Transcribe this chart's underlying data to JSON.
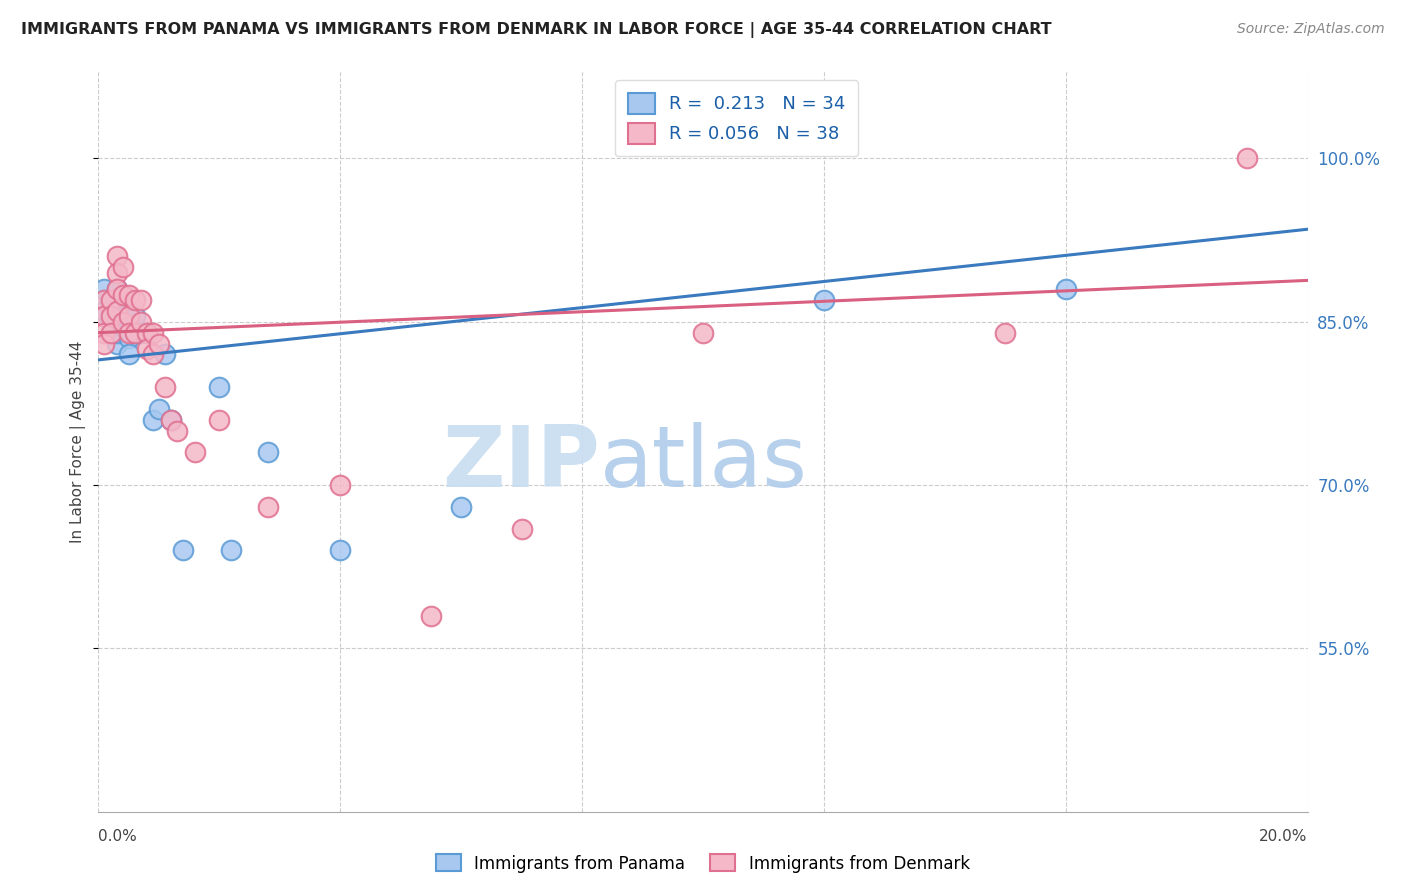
{
  "title": "IMMIGRANTS FROM PANAMA VS IMMIGRANTS FROM DENMARK IN LABOR FORCE | AGE 35-44 CORRELATION CHART",
  "source": "Source: ZipAtlas.com",
  "ylabel": "In Labor Force | Age 35-44",
  "y_tick_labels": [
    "55.0%",
    "70.0%",
    "85.0%",
    "100.0%"
  ],
  "y_tick_values": [
    0.55,
    0.7,
    0.85,
    1.0
  ],
  "xlim": [
    0.0,
    0.2
  ],
  "ylim": [
    0.4,
    1.08
  ],
  "legend_r_panama": "0.213",
  "legend_n_panama": "34",
  "legend_r_denmark": "0.056",
  "legend_n_denmark": "38",
  "legend_label_panama": "Immigrants from Panama",
  "legend_label_denmark": "Immigrants from Denmark",
  "color_panama_face": "#a8c8f0",
  "color_panama_edge": "#5b9bd5",
  "color_denmark_face": "#f4b8c8",
  "color_denmark_edge": "#e07090",
  "color_trend_panama": "#3a7abf",
  "color_trend_denmark": "#d96080",
  "grid_color": "#cccccc",
  "watermark_zip_color": "#c8ddf0",
  "watermark_atlas_color": "#b0ccec",
  "panama_x": [
    0.001,
    0.001,
    0.001,
    0.002,
    0.002,
    0.002,
    0.002,
    0.003,
    0.003,
    0.003,
    0.003,
    0.003,
    0.004,
    0.004,
    0.004,
    0.005,
    0.005,
    0.005,
    0.006,
    0.006,
    0.007,
    0.008,
    0.009,
    0.01,
    0.011,
    0.012,
    0.014,
    0.02,
    0.022,
    0.028,
    0.04,
    0.06,
    0.12,
    0.16
  ],
  "panama_y": [
    0.87,
    0.88,
    0.86,
    0.87,
    0.85,
    0.84,
    0.86,
    0.88,
    0.86,
    0.845,
    0.83,
    0.84,
    0.875,
    0.855,
    0.845,
    0.85,
    0.835,
    0.82,
    0.855,
    0.84,
    0.84,
    0.84,
    0.76,
    0.77,
    0.82,
    0.76,
    0.64,
    0.79,
    0.64,
    0.73,
    0.64,
    0.68,
    0.87,
    0.88
  ],
  "denmark_x": [
    0.001,
    0.001,
    0.001,
    0.001,
    0.002,
    0.002,
    0.002,
    0.003,
    0.003,
    0.003,
    0.003,
    0.004,
    0.004,
    0.004,
    0.005,
    0.005,
    0.005,
    0.006,
    0.006,
    0.007,
    0.007,
    0.008,
    0.008,
    0.009,
    0.009,
    0.01,
    0.011,
    0.012,
    0.013,
    0.016,
    0.02,
    0.028,
    0.04,
    0.055,
    0.07,
    0.1,
    0.15,
    0.19
  ],
  "denmark_y": [
    0.87,
    0.855,
    0.84,
    0.83,
    0.87,
    0.855,
    0.84,
    0.91,
    0.895,
    0.88,
    0.86,
    0.9,
    0.875,
    0.85,
    0.875,
    0.855,
    0.84,
    0.87,
    0.84,
    0.87,
    0.85,
    0.84,
    0.825,
    0.84,
    0.82,
    0.83,
    0.79,
    0.76,
    0.75,
    0.73,
    0.76,
    0.68,
    0.7,
    0.58,
    0.66,
    0.84,
    0.84,
    1.0
  ]
}
